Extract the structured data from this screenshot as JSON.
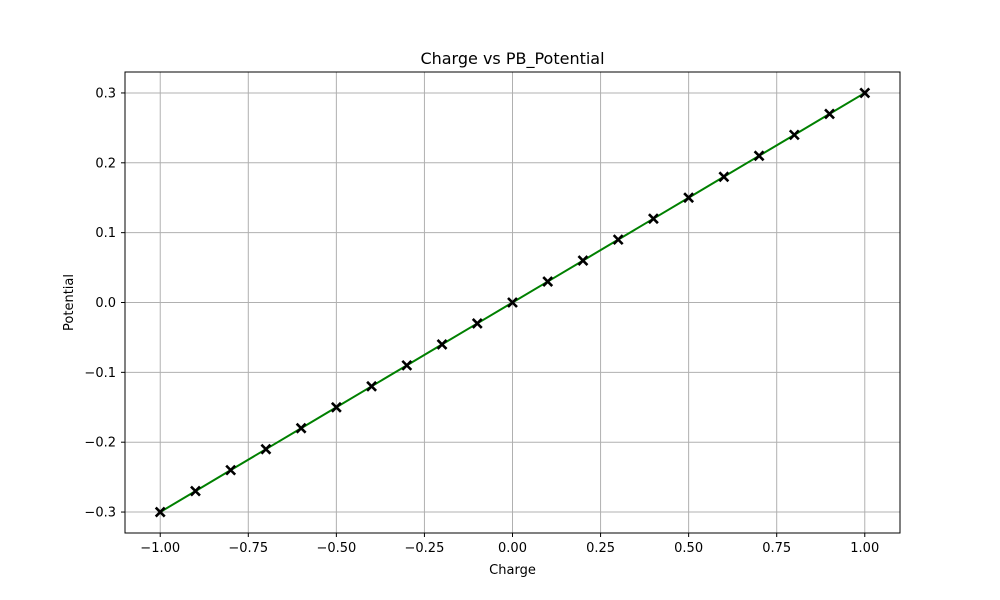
{
  "chart_data": {
    "type": "line",
    "title": "Charge vs PB_Potential",
    "xlabel": "Charge",
    "ylabel": "Potential",
    "xlim": [
      -1.1,
      1.1
    ],
    "ylim": [
      -0.33,
      0.33
    ],
    "grid": true,
    "x_ticks": [
      -1.0,
      -0.75,
      -0.5,
      -0.25,
      0.0,
      0.25,
      0.5,
      0.75,
      1.0
    ],
    "x_tick_labels": [
      "−1.00",
      "−0.75",
      "−0.50",
      "−0.25",
      "0.00",
      "0.25",
      "0.50",
      "0.75",
      "1.00"
    ],
    "y_ticks": [
      -0.3,
      -0.2,
      -0.1,
      0.0,
      0.1,
      0.2,
      0.3
    ],
    "y_tick_labels": [
      "−0.3",
      "−0.2",
      "−0.1",
      "0.0",
      "0.1",
      "0.2",
      "0.3"
    ],
    "series": [
      {
        "line_color": "#008000",
        "marker": "x",
        "marker_color": "#000000",
        "x": [
          -1.0,
          -0.9,
          -0.8,
          -0.7,
          -0.6,
          -0.5,
          -0.4,
          -0.3,
          -0.2,
          -0.1,
          0.0,
          0.1,
          0.2,
          0.3,
          0.4,
          0.5,
          0.6,
          0.7,
          0.8,
          0.9,
          1.0
        ],
        "y": [
          -0.3,
          -0.27,
          -0.24,
          -0.21,
          -0.18,
          -0.15,
          -0.12,
          -0.09,
          -0.06,
          -0.03,
          0.0,
          0.03,
          0.06,
          0.09,
          0.12,
          0.15,
          0.18,
          0.21,
          0.24,
          0.27,
          0.3
        ]
      }
    ]
  }
}
